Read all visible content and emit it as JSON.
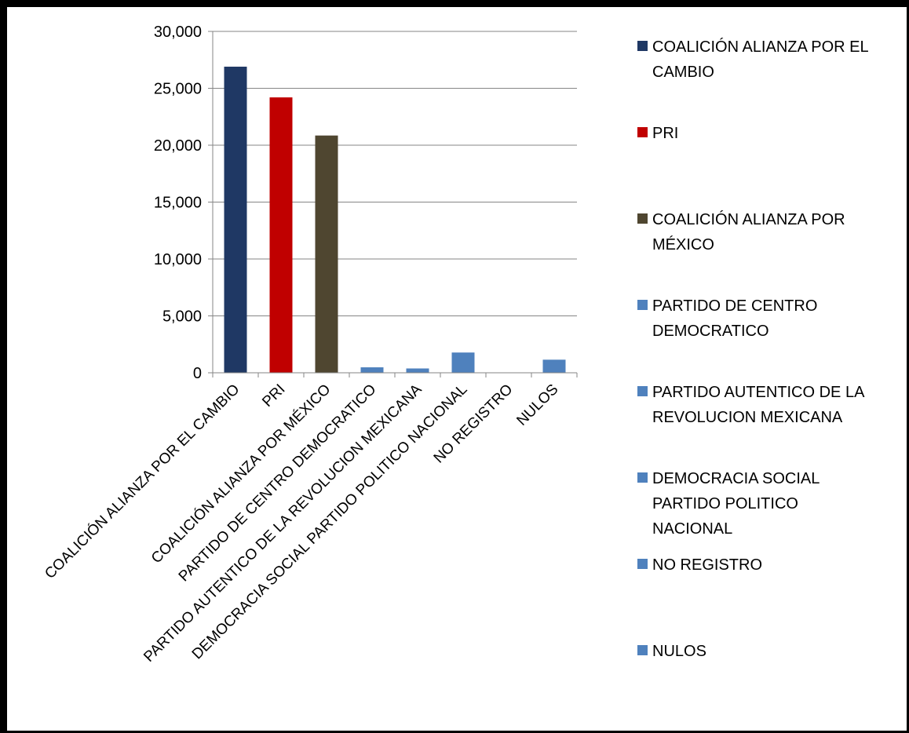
{
  "chart_data": {
    "type": "bar",
    "title": "",
    "xlabel": "",
    "ylabel": "",
    "ylim": [
      0,
      30000
    ],
    "yticks": [
      0,
      5000,
      10000,
      15000,
      20000,
      25000,
      30000
    ],
    "ytick_labels": [
      "0",
      "5,000",
      "10,000",
      "15,000",
      "20,000",
      "25,000",
      "30,000"
    ],
    "grid": true,
    "legend_position": "right",
    "categories": [
      "COALICIÓN ALIANZA POR EL CAMBIO",
      "PRI",
      "COALICIÓN ALIANZA POR MÉXICO",
      "PARTIDO DE CENTRO DEMOCRATICO",
      "PARTIDO AUTENTICO DE LA REVOLUCION MEXICANA",
      "DEMOCRACIA SOCIAL PARTIDO POLITICO NACIONAL",
      "NO REGISTRO",
      "NULOS"
    ],
    "values": [
      26900,
      24200,
      20850,
      480,
      380,
      1780,
      0,
      1150
    ],
    "colors": [
      "#1f3864",
      "#c00000",
      "#4f4630",
      "#4f81bd",
      "#4f81bd",
      "#4f81bd",
      "#4f81bd",
      "#4f81bd"
    ],
    "legend": [
      {
        "lines": [
          "COALICIÓN ALIANZA POR EL",
          "CAMBIO"
        ],
        "color": "#1f3864"
      },
      {
        "lines": [
          "PRI"
        ],
        "color": "#c00000"
      },
      {
        "lines": [
          "COALICIÓN ALIANZA POR",
          "MÉXICO"
        ],
        "color": "#4f4630"
      },
      {
        "lines": [
          "PARTIDO DE CENTRO",
          "DEMOCRATICO"
        ],
        "color": "#4f81bd"
      },
      {
        "lines": [
          "PARTIDO AUTENTICO DE LA",
          "REVOLUCION MEXICANA"
        ],
        "color": "#4f81bd"
      },
      {
        "lines": [
          "DEMOCRACIA SOCIAL",
          "PARTIDO POLITICO",
          "NACIONAL"
        ],
        "color": "#4f81bd"
      },
      {
        "lines": [
          "NO REGISTRO"
        ],
        "color": "#4f81bd"
      },
      {
        "lines": [
          "NULOS"
        ],
        "color": "#4f81bd"
      }
    ]
  }
}
